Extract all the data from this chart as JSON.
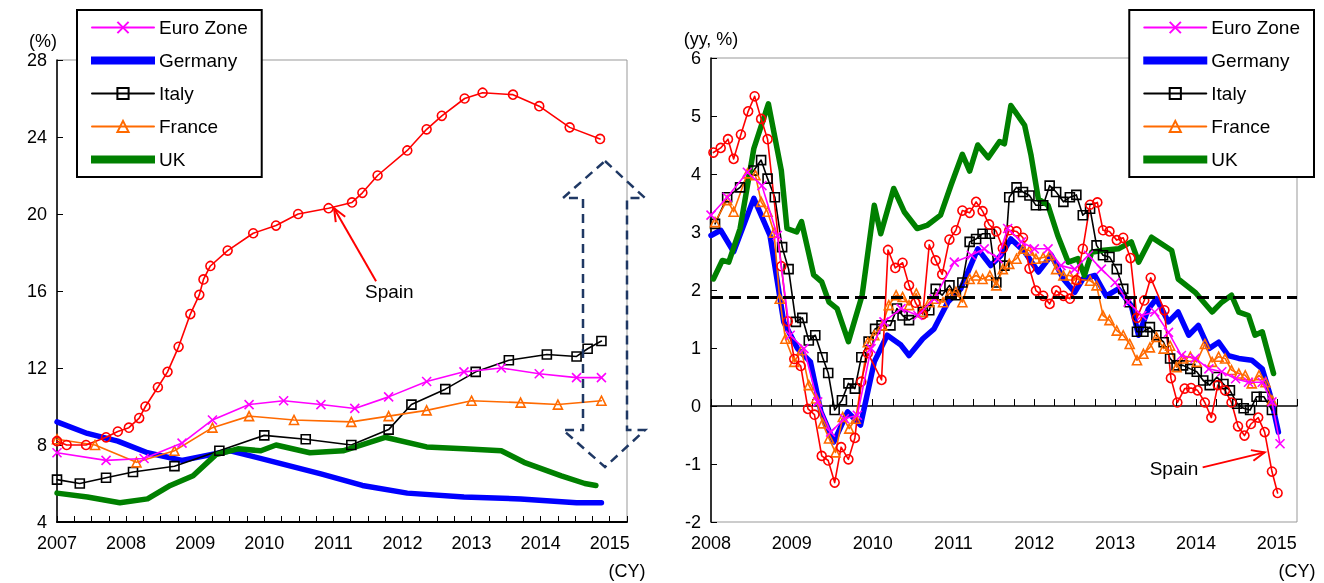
{
  "chart_data": [
    {
      "type": "line",
      "xlabel": "(CY)",
      "ylabel": "(%)",
      "xlim": [
        2007,
        2015.25
      ],
      "xticks": [
        2007,
        2008,
        2009,
        2010,
        2011,
        2012,
        2013,
        2014,
        2015
      ],
      "ylim": [
        4,
        28
      ],
      "yticks": [
        4,
        8,
        12,
        16,
        20,
        24,
        28
      ],
      "legend": "top left",
      "series": [
        {
          "name": "Euro Zone",
          "color": "#ff00ff",
          "marker": "cross",
          "x": [
            2007,
            2007.71,
            2008.26,
            2008.81,
            2009.25,
            2009.78,
            2010.28,
            2010.82,
            2011.31,
            2011.8,
            2012.35,
            2012.89,
            2013.43,
            2013.98,
            2014.52,
            2014.88
          ],
          "values": [
            7.6,
            7.2,
            7.3,
            8.1,
            9.3,
            10.1,
            10.3,
            10.1,
            9.9,
            10.5,
            11.3,
            11.8,
            12.0,
            11.7,
            11.5,
            11.5
          ]
        },
        {
          "name": "Germany",
          "color": "#0000ff",
          "marker": "none",
          "x": [
            2007,
            2007.44,
            2007.88,
            2008.31,
            2008.81,
            2009.51,
            2010.17,
            2010.82,
            2011.42,
            2012.07,
            2012.89,
            2013.71,
            2014.52,
            2014.88
          ],
          "values": [
            9.2,
            8.6,
            8.2,
            7.6,
            7.2,
            7.7,
            7.1,
            6.5,
            5.9,
            5.5,
            5.3,
            5.2,
            5.0,
            5.0
          ]
        },
        {
          "name": "Italy",
          "color": "#000000",
          "marker": "square",
          "x": [
            2007,
            2007.33,
            2007.71,
            2008.1,
            2008.7,
            2009.35,
            2010,
            2010.6,
            2011.26,
            2011.8,
            2012.13,
            2012.62,
            2013.06,
            2013.54,
            2014.09,
            2014.52,
            2014.68,
            2014.88
          ],
          "values": [
            6.2,
            6.0,
            6.3,
            6.6,
            6.9,
            7.7,
            8.5,
            8.3,
            8.0,
            8.8,
            10.1,
            10.9,
            11.8,
            12.4,
            12.7,
            12.6,
            13.0,
            13.4
          ]
        },
        {
          "name": "France",
          "color": "#ff6a00",
          "marker": "triangle",
          "x": [
            2007,
            2007.55,
            2008.15,
            2008.7,
            2009.25,
            2009.78,
            2010.43,
            2011.26,
            2011.8,
            2012.35,
            2013,
            2013.71,
            2014.25,
            2014.88
          ],
          "values": [
            8.3,
            8.0,
            7.1,
            7.7,
            8.9,
            9.5,
            9.3,
            9.2,
            9.5,
            9.8,
            10.3,
            10.2,
            10.1,
            10.3
          ]
        },
        {
          "name": "UK",
          "color": "#008000",
          "marker": "none",
          "x": [
            2007,
            2007.44,
            2007.91,
            2008.31,
            2008.64,
            2008.97,
            2009.3,
            2009.62,
            2009.95,
            2010.17,
            2010.66,
            2011.14,
            2011.75,
            2012.35,
            2012.89,
            2013.43,
            2013.76,
            2014.3,
            2014.64,
            2014.8
          ],
          "values": [
            5.5,
            5.3,
            5.0,
            5.2,
            5.9,
            6.4,
            7.5,
            7.8,
            7.7,
            8.0,
            7.6,
            7.7,
            8.4,
            7.9,
            7.8,
            7.7,
            7.1,
            6.4,
            6.0,
            5.9
          ]
        },
        {
          "color": "#ff0000",
          "marker": "circle",
          "x": [
            2007,
            2007.14,
            2007.42,
            2007.71,
            2007.88,
            2008.04,
            2008.19,
            2008.28,
            2008.46,
            2008.6,
            2008.76,
            2008.93,
            2009.06,
            2009.12,
            2009.22,
            2009.47,
            2009.84,
            2010.17,
            2010.49,
            2010.93,
            2011.27,
            2011.42,
            2011.64,
            2012.07,
            2012.35,
            2012.57,
            2012.9,
            2013.16,
            2013.6,
            2013.98,
            2014.42,
            2014.86
          ],
          "values": [
            8.2,
            8.0,
            8.0,
            8.4,
            8.7,
            8.9,
            9.4,
            10.0,
            11.0,
            11.8,
            13.1,
            14.8,
            15.8,
            16.6,
            17.3,
            18.1,
            19.0,
            19.4,
            20.0,
            20.3,
            20.6,
            21.1,
            22.0,
            23.3,
            24.4,
            25.1,
            26.0,
            26.3,
            26.2,
            25.6,
            24.5,
            23.9
          ]
        }
      ],
      "annotations": [
        {
          "text": "Spain",
          "x": 2011.01,
          "y": 20.3
        }
      ]
    },
    {
      "type": "line",
      "xlabel": "(CY)",
      "ylabel": "(yy, %)",
      "xlim": [
        2008,
        2015.25
      ],
      "xticks": [
        2008,
        2009,
        2010,
        2011,
        2012,
        2013,
        2014,
        2015
      ],
      "ylim": [
        -2,
        6
      ],
      "yticks": [
        -2,
        -1,
        0,
        1,
        2,
        3,
        4,
        5,
        6
      ],
      "legend": "top right",
      "series": [
        {
          "name": "Euro Zone",
          "color": "#ff00ff",
          "marker": "cross",
          "x": [
            2008,
            2008.2,
            2008.45,
            2008.63,
            2008.82,
            2008.98,
            2009.15,
            2009.32,
            2009.48,
            2009.65,
            2009.81,
            2009.98,
            2010.14,
            2010.35,
            2010.56,
            2010.76,
            2011.01,
            2011.22,
            2011.38,
            2011.55,
            2011.67,
            2011.84,
            2012,
            2012.17,
            2012.33,
            2012.5,
            2012.67,
            2012.83,
            2013,
            2013.16,
            2013.33,
            2013.49,
            2013.66,
            2013.82,
            2013.99,
            2014.16,
            2014.32,
            2014.49,
            2014.65,
            2014.82,
            2014.94,
            2015.04
          ],
          "values": [
            3.29,
            3.6,
            4.03,
            3.8,
            2.94,
            1.22,
            0.99,
            0.07,
            -0.45,
            -0.22,
            -0.16,
            0.99,
            1.45,
            1.68,
            1.56,
            1.85,
            2.48,
            2.6,
            2.71,
            2.54,
            3.06,
            2.83,
            2.71,
            2.71,
            2.42,
            2.36,
            2.6,
            2.36,
            2.13,
            1.79,
            1.56,
            1.62,
            1.27,
            0.87,
            0.82,
            0.64,
            0.59,
            0.47,
            0.41,
            0.41,
            0.07,
            -0.65
          ]
        },
        {
          "name": "Germany",
          "color": "#0000ff",
          "marker": "none",
          "x": [
            2008,
            2008.12,
            2008.28,
            2008.53,
            2008.73,
            2008.9,
            2009.07,
            2009.23,
            2009.36,
            2009.52,
            2009.69,
            2009.85,
            2010.02,
            2010.18,
            2010.35,
            2010.45,
            2010.62,
            2010.76,
            2010.93,
            2011.09,
            2011.3,
            2011.46,
            2011.59,
            2011.71,
            2011.88,
            2012.05,
            2012.21,
            2012.36,
            2012.5,
            2012.6,
            2012.75,
            2012.89,
            2013.04,
            2013.2,
            2013.29,
            2013.41,
            2013.51,
            2013.66,
            2013.78,
            2013.91,
            2014.03,
            2014.16,
            2014.28,
            2014.4,
            2014.53,
            2014.69,
            2014.82,
            2014.92,
            2015.02
          ],
          "values": [
            2.94,
            3.03,
            2.66,
            3.58,
            2.94,
            1.45,
            0.99,
            0.76,
            -0.1,
            -0.62,
            -0.1,
            -0.33,
            0.76,
            1.22,
            1.05,
            0.87,
            1.16,
            1.33,
            1.79,
            2.02,
            2.71,
            2.42,
            2.6,
            2.88,
            2.66,
            2.31,
            2.6,
            2.19,
            1.96,
            2.19,
            2.25,
            1.9,
            2.02,
            1.73,
            1.22,
            1.67,
            1.85,
            1.45,
            1.62,
            1.22,
            1.39,
            0.99,
            1.1,
            0.87,
            0.82,
            0.79,
            0.64,
            0.18,
            -0.45
          ]
        },
        {
          "name": "Italy",
          "color": "#000000",
          "marker": "square",
          "x": [
            2008.05,
            2008.2,
            2008.36,
            2008.53,
            2008.62,
            2008.7,
            2008.79,
            2008.88,
            2008.96,
            2009.05,
            2009.13,
            2009.21,
            2009.29,
            2009.38,
            2009.45,
            2009.53,
            2009.62,
            2009.7,
            2009.78,
            2009.86,
            2009.95,
            2010.03,
            2010.11,
            2010.22,
            2010.3,
            2010.37,
            2010.45,
            2010.62,
            2010.7,
            2010.78,
            2010.86,
            2010.95,
            2011.03,
            2011.11,
            2011.2,
            2011.28,
            2011.36,
            2011.45,
            2011.53,
            2011.63,
            2011.69,
            2011.78,
            2011.86,
            2011.94,
            2012.02,
            2012.11,
            2012.19,
            2012.27,
            2012.36,
            2012.44,
            2012.52,
            2012.6,
            2012.69,
            2012.77,
            2012.85,
            2012.93,
            2013.02,
            2013.1,
            2013.18,
            2013.27,
            2013.35,
            2013.43,
            2013.51,
            2013.6,
            2013.68,
            2013.76,
            2013.84,
            2013.93,
            2014.01,
            2014.09,
            2014.17,
            2014.26,
            2014.34,
            2014.42,
            2014.51,
            2014.59,
            2014.67,
            2014.75,
            2014.84,
            2014.94
          ],
          "values": [
            3.14,
            3.6,
            3.77,
            4.06,
            4.24,
            3.92,
            3.6,
            2.74,
            2.36,
            1.45,
            1.52,
            1.13,
            1.22,
            0.84,
            0.57,
            -0.07,
            0.1,
            0.39,
            0.3,
            0.84,
            1.11,
            1.33,
            1.39,
            1.39,
            1.68,
            1.56,
            1.48,
            1.62,
            1.65,
            2.02,
            1.91,
            2.08,
            1.91,
            2.13,
            2.83,
            2.88,
            2.97,
            2.97,
            2.13,
            2.42,
            3.6,
            3.77,
            3.69,
            3.63,
            3.46,
            3.46,
            3.8,
            3.69,
            3.52,
            3.6,
            3.64,
            3.29,
            3.4,
            2.77,
            2.6,
            2.57,
            2.36,
            2.02,
            1.79,
            1.28,
            1.28,
            1.36,
            1.22,
            1.1,
            0.82,
            0.7,
            0.7,
            0.64,
            0.59,
            0.44,
            0.36,
            0.5,
            0.38,
            0.27,
            0.04,
            -0.04,
            -0.07,
            0.16,
            0.16,
            -0.07
          ]
        },
        {
          "name": "France",
          "color": "#ff6a00",
          "marker": "triangle",
          "x": [
            2008.05,
            2008.2,
            2008.28,
            2008.45,
            2008.55,
            2008.62,
            2008.7,
            2008.78,
            2008.85,
            2008.92,
            2009.03,
            2009.12,
            2009.21,
            2009.3,
            2009.38,
            2009.46,
            2009.54,
            2009.63,
            2009.71,
            2009.79,
            2009.94,
            2010.02,
            2010.12,
            2010.2,
            2010.29,
            2010.37,
            2010.45,
            2010.54,
            2010.62,
            2010.7,
            2010.78,
            2010.87,
            2010.95,
            2011.03,
            2011.11,
            2011.2,
            2011.28,
            2011.36,
            2011.45,
            2011.53,
            2011.61,
            2011.69,
            2011.78,
            2011.86,
            2011.94,
            2012.02,
            2012.11,
            2012.19,
            2012.27,
            2012.36,
            2012.44,
            2012.52,
            2012.69,
            2012.77,
            2012.85,
            2012.93,
            2013.02,
            2013.1,
            2013.18,
            2013.27,
            2013.35,
            2013.43,
            2013.51,
            2013.6,
            2013.68,
            2013.76,
            2013.84,
            2013.93,
            2014.01,
            2014.11,
            2014.2,
            2014.28,
            2014.36,
            2014.44,
            2014.53,
            2014.61,
            2014.69,
            2014.78,
            2014.86,
            2014.94
          ],
          "values": [
            3.17,
            3.55,
            3.35,
            4.01,
            3.98,
            3.52,
            3.35,
            2.99,
            1.85,
            1.16,
            0.76,
            0.96,
            0.36,
            0.13,
            -0.3,
            -0.56,
            -0.8,
            -0.19,
            -0.39,
            -0.22,
            1.1,
            1.22,
            1.39,
            1.74,
            1.91,
            1.88,
            1.74,
            1.94,
            1.62,
            1.79,
            1.85,
            1.79,
            1.94,
            1.97,
            1.79,
            2.19,
            2.25,
            2.19,
            2.25,
            2.08,
            2.36,
            2.45,
            2.54,
            2.71,
            2.68,
            2.54,
            2.56,
            2.6,
            2.36,
            2.25,
            2.25,
            2.19,
            2.16,
            2.08,
            1.56,
            1.48,
            1.3,
            1.22,
            1.07,
            0.79,
            0.9,
            1.01,
            1.19,
            0.99,
            1.04,
            0.67,
            0.82,
            0.85,
            0.76,
            1.07,
            0.76,
            0.85,
            0.82,
            0.62,
            0.56,
            0.53,
            0.39,
            0.53,
            0.41,
            0.1
          ]
        },
        {
          "name": "UK",
          "color": "#008000",
          "marker": "none",
          "x": [
            2008.03,
            2008.14,
            2008.22,
            2008.36,
            2008.53,
            2008.71,
            2008.87,
            2008.94,
            2009.06,
            2009.12,
            2009.27,
            2009.37,
            2009.46,
            2009.56,
            2009.7,
            2009.87,
            2010.02,
            2010.1,
            2010.26,
            2010.39,
            2010.55,
            2010.68,
            2010.84,
            2010.97,
            2011.11,
            2011.2,
            2011.3,
            2011.43,
            2011.57,
            2011.63,
            2011.71,
            2011.88,
            2011.96,
            2012.05,
            2012.17,
            2012.29,
            2012.42,
            2012.54,
            2012.62,
            2012.71,
            2012.83,
            2013.04,
            2013.2,
            2013.29,
            2013.45,
            2013.7,
            2013.78,
            2013.99,
            2014.2,
            2014.32,
            2014.44,
            2014.53,
            2014.65,
            2014.73,
            2014.82,
            2014.96
          ],
          "values": [
            2.19,
            2.51,
            2.48,
            3.06,
            4.44,
            5.21,
            4.06,
            3.06,
            3.0,
            3.18,
            2.26,
            2.14,
            1.79,
            1.68,
            1.11,
            1.91,
            3.46,
            2.97,
            3.75,
            3.35,
            3.06,
            3.12,
            3.29,
            3.81,
            4.34,
            4.05,
            4.5,
            4.28,
            4.56,
            4.52,
            5.18,
            4.84,
            4.32,
            3.57,
            3.46,
            2.94,
            2.48,
            2.54,
            2.25,
            2.65,
            2.68,
            2.71,
            2.83,
            2.48,
            2.91,
            2.68,
            2.19,
            1.96,
            1.62,
            1.79,
            1.91,
            1.62,
            1.56,
            1.22,
            1.28,
            0.56
          ]
        },
        {
          "color": "#ff0000",
          "marker": "circle",
          "x": [
            2008.03,
            2008.12,
            2008.21,
            2008.28,
            2008.37,
            2008.46,
            2008.54,
            2008.62,
            2008.7,
            2008.87,
            2008.95,
            2009.03,
            2009.11,
            2009.2,
            2009.28,
            2009.37,
            2009.45,
            2009.53,
            2009.61,
            2009.7,
            2009.78,
            2009.86,
            2009.94,
            2010.11,
            2010.19,
            2010.28,
            2010.37,
            2010.45,
            2010.53,
            2010.62,
            2010.7,
            2010.78,
            2010.86,
            2010.95,
            2011.03,
            2011.11,
            2011.2,
            2011.28,
            2011.36,
            2011.44,
            2011.53,
            2011.61,
            2011.69,
            2011.78,
            2011.86,
            2011.94,
            2012.02,
            2012.11,
            2012.19,
            2012.27,
            2012.36,
            2012.44,
            2012.52,
            2012.6,
            2012.69,
            2012.78,
            2012.85,
            2012.93,
            2013.02,
            2013.1,
            2013.19,
            2013.27,
            2013.36,
            2013.44,
            2013.61,
            2013.69,
            2013.77,
            2013.86,
            2013.94,
            2014.02,
            2014.11,
            2014.19,
            2014.27,
            2014.36,
            2014.44,
            2014.52,
            2014.6,
            2014.68,
            2014.77,
            2014.85,
            2014.94,
            2015.01
          ],
          "values": [
            4.37,
            4.45,
            4.6,
            4.26,
            4.68,
            5.08,
            5.34,
            4.95,
            4.6,
            2.41,
            1.46,
            0.81,
            0.69,
            -0.05,
            -0.15,
            -0.86,
            -0.94,
            -1.32,
            -0.71,
            -0.92,
            -0.55,
            0.42,
            0.91,
            0.45,
            2.69,
            2.38,
            2.47,
            2.08,
            1.78,
            1.58,
            2.78,
            2.51,
            2.27,
            2.87,
            3.03,
            3.37,
            3.33,
            3.52,
            3.36,
            3.13,
            3.01,
            2.72,
            3.03,
            3.01,
            2.9,
            2.37,
            1.99,
            1.9,
            1.76,
            1.99,
            1.9,
            1.85,
            2.17,
            2.71,
            3.47,
            3.51,
            3.03,
            3.01,
            2.86,
            2.9,
            2.55,
            1.52,
            1.82,
            2.21,
            1.65,
            0.48,
            0.06,
            0.3,
            0.31,
            0.27,
            0.06,
            -0.2,
            0.36,
            0.27,
            0.06,
            -0.35,
            -0.51,
            -0.31,
            -0.2,
            -0.45,
            -1.13,
            -1.5
          ]
        }
      ],
      "ref_lines": [
        {
          "axis": "y",
          "value": 1.87,
          "color": "#000000",
          "line_style": "dashed"
        }
      ],
      "annotations": [
        {
          "text": "Spain",
          "x": 2014.85,
          "y": -0.8
        }
      ]
    }
  ]
}
